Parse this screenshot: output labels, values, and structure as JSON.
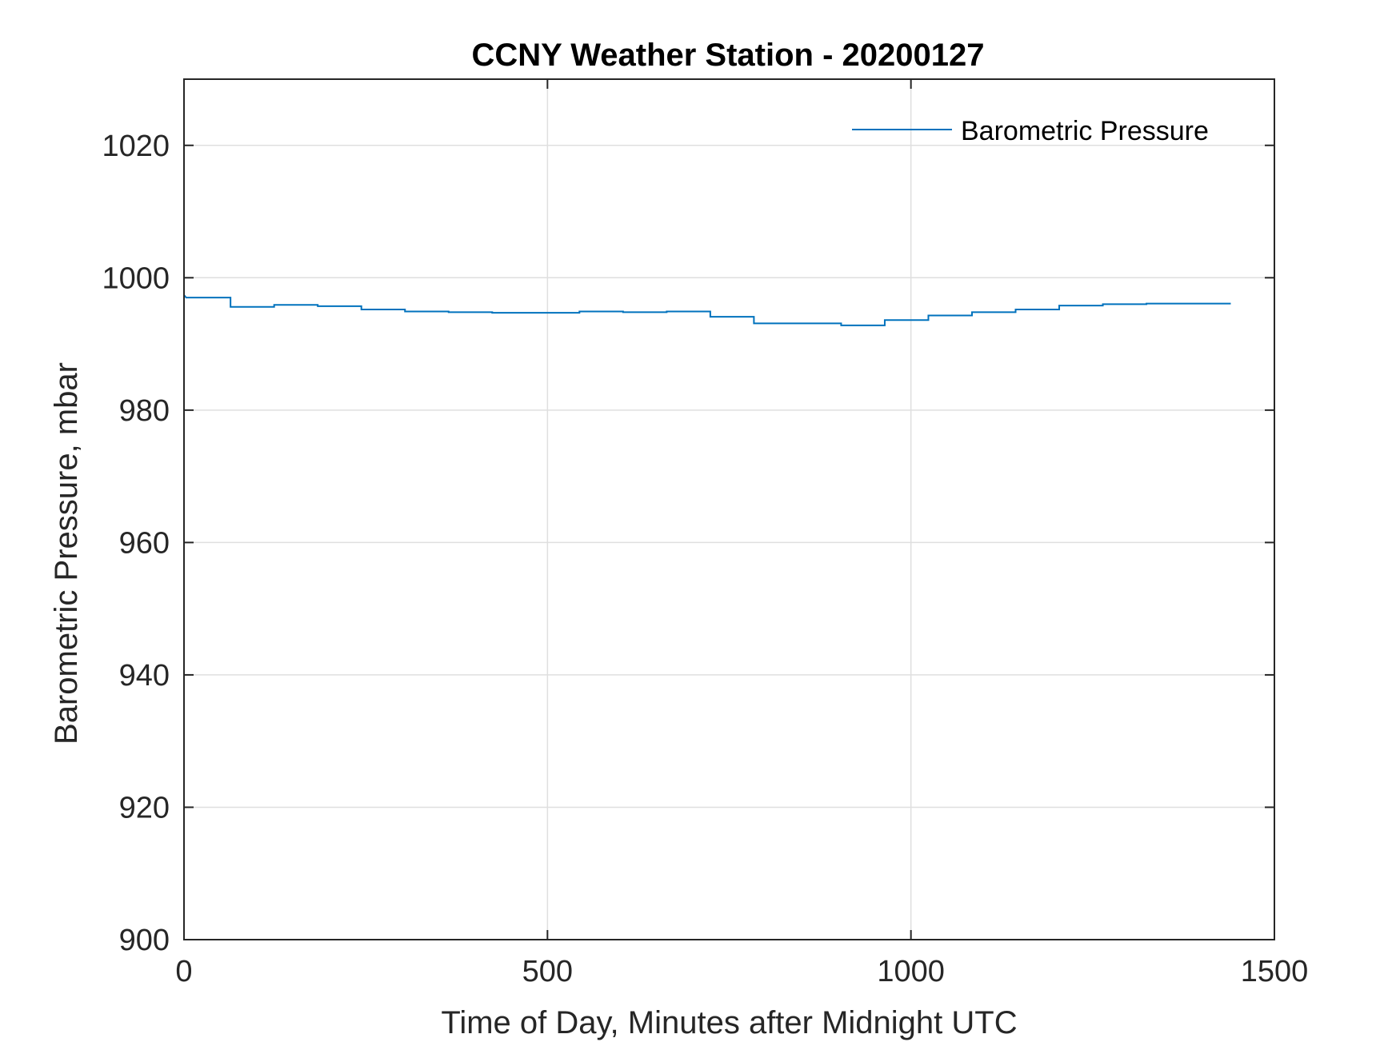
{
  "chart_data": {
    "type": "line",
    "title": "CCNY Weather Station - 20200127",
    "xlabel": "Time of Day, Minutes after Midnight UTC",
    "ylabel": "Barometric Pressure, mbar",
    "xlim": [
      0,
      1500
    ],
    "ylim": [
      900,
      1030
    ],
    "xticks": [
      0,
      500,
      1000,
      1500
    ],
    "yticks": [
      900,
      920,
      940,
      960,
      980,
      1000,
      1020
    ],
    "xtick_labels": [
      "0",
      "500",
      "1000",
      "1500"
    ],
    "ytick_labels": [
      "900",
      "920",
      "940",
      "960",
      "980",
      "1000",
      "1020"
    ],
    "grid": true,
    "legend": {
      "position": "top-right",
      "entries": [
        "Barometric Pressure"
      ]
    },
    "series": [
      {
        "name": "Barometric Pressure",
        "color": "#0072BD",
        "step": true,
        "points": [
          [
            0,
            997.4
          ],
          [
            3,
            997.0
          ],
          [
            64,
            997.0
          ],
          [
            64,
            995.6
          ],
          [
            124,
            995.6
          ],
          [
            124,
            995.9
          ],
          [
            184,
            995.9
          ],
          [
            184,
            995.7
          ],
          [
            244,
            995.7
          ],
          [
            244,
            995.2
          ],
          [
            304,
            995.2
          ],
          [
            304,
            994.9
          ],
          [
            364,
            994.9
          ],
          [
            364,
            994.8
          ],
          [
            424,
            994.8
          ],
          [
            424,
            994.7
          ],
          [
            544,
            994.7
          ],
          [
            544,
            994.9
          ],
          [
            604,
            994.9
          ],
          [
            604,
            994.8
          ],
          [
            664,
            994.8
          ],
          [
            664,
            994.9
          ],
          [
            724,
            994.9
          ],
          [
            724,
            994.1
          ],
          [
            784,
            994.1
          ],
          [
            784,
            993.1
          ],
          [
            904,
            993.1
          ],
          [
            904,
            992.8
          ],
          [
            964,
            992.8
          ],
          [
            964,
            993.6
          ],
          [
            1024,
            993.6
          ],
          [
            1024,
            994.3
          ],
          [
            1084,
            994.3
          ],
          [
            1084,
            994.8
          ],
          [
            1144,
            994.8
          ],
          [
            1144,
            995.2
          ],
          [
            1204,
            995.2
          ],
          [
            1204,
            995.8
          ],
          [
            1264,
            995.8
          ],
          [
            1264,
            996.0
          ],
          [
            1324,
            996.0
          ],
          [
            1324,
            996.1
          ],
          [
            1440,
            996.1
          ]
        ]
      }
    ]
  },
  "colors": {
    "axis": "#262626",
    "grid": "#dfdfdf",
    "title": "#000000"
  }
}
